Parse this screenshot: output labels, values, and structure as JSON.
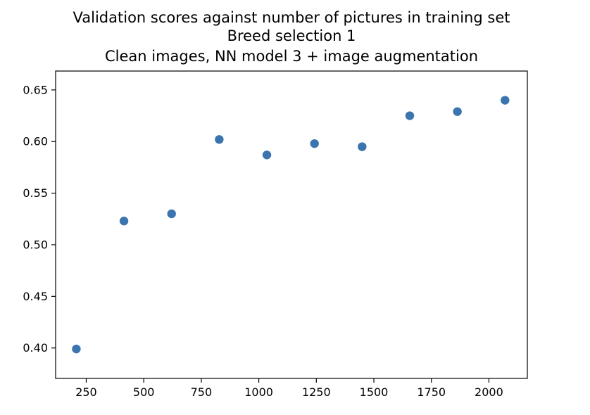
{
  "chart_data": {
    "type": "scatter",
    "title": [
      "Validation scores against number of pictures in training set",
      "Breed selection 1",
      "Clean images, NN model 3 + image augmentation"
    ],
    "xlabel": "",
    "ylabel": "",
    "x_ticks": [
      250,
      500,
      750,
      1000,
      1250,
      1500,
      1750,
      2000
    ],
    "x_tick_labels": [
      "250",
      "500",
      "750",
      "1000",
      "1250",
      "1500",
      "1750",
      "2000"
    ],
    "y_ticks": [
      0.4,
      0.45,
      0.5,
      0.55,
      0.6,
      0.65
    ],
    "y_tick_labels": [
      "0.40",
      "0.45",
      "0.50",
      "0.55",
      "0.60",
      "0.65"
    ],
    "xlim": [
      117,
      2167
    ],
    "ylim": [
      0.3705,
      0.6683
    ],
    "grid": false,
    "series": [
      {
        "color": "#3b75af",
        "points": [
          {
            "x": 207,
            "y": 0.399
          },
          {
            "x": 414,
            "y": 0.523
          },
          {
            "x": 621,
            "y": 0.53
          },
          {
            "x": 828,
            "y": 0.602
          },
          {
            "x": 1035,
            "y": 0.587
          },
          {
            "x": 1242,
            "y": 0.598
          },
          {
            "x": 1449,
            "y": 0.595
          },
          {
            "x": 1656,
            "y": 0.625
          },
          {
            "x": 1863,
            "y": 0.629
          },
          {
            "x": 2070,
            "y": 0.64
          }
        ]
      }
    ]
  }
}
